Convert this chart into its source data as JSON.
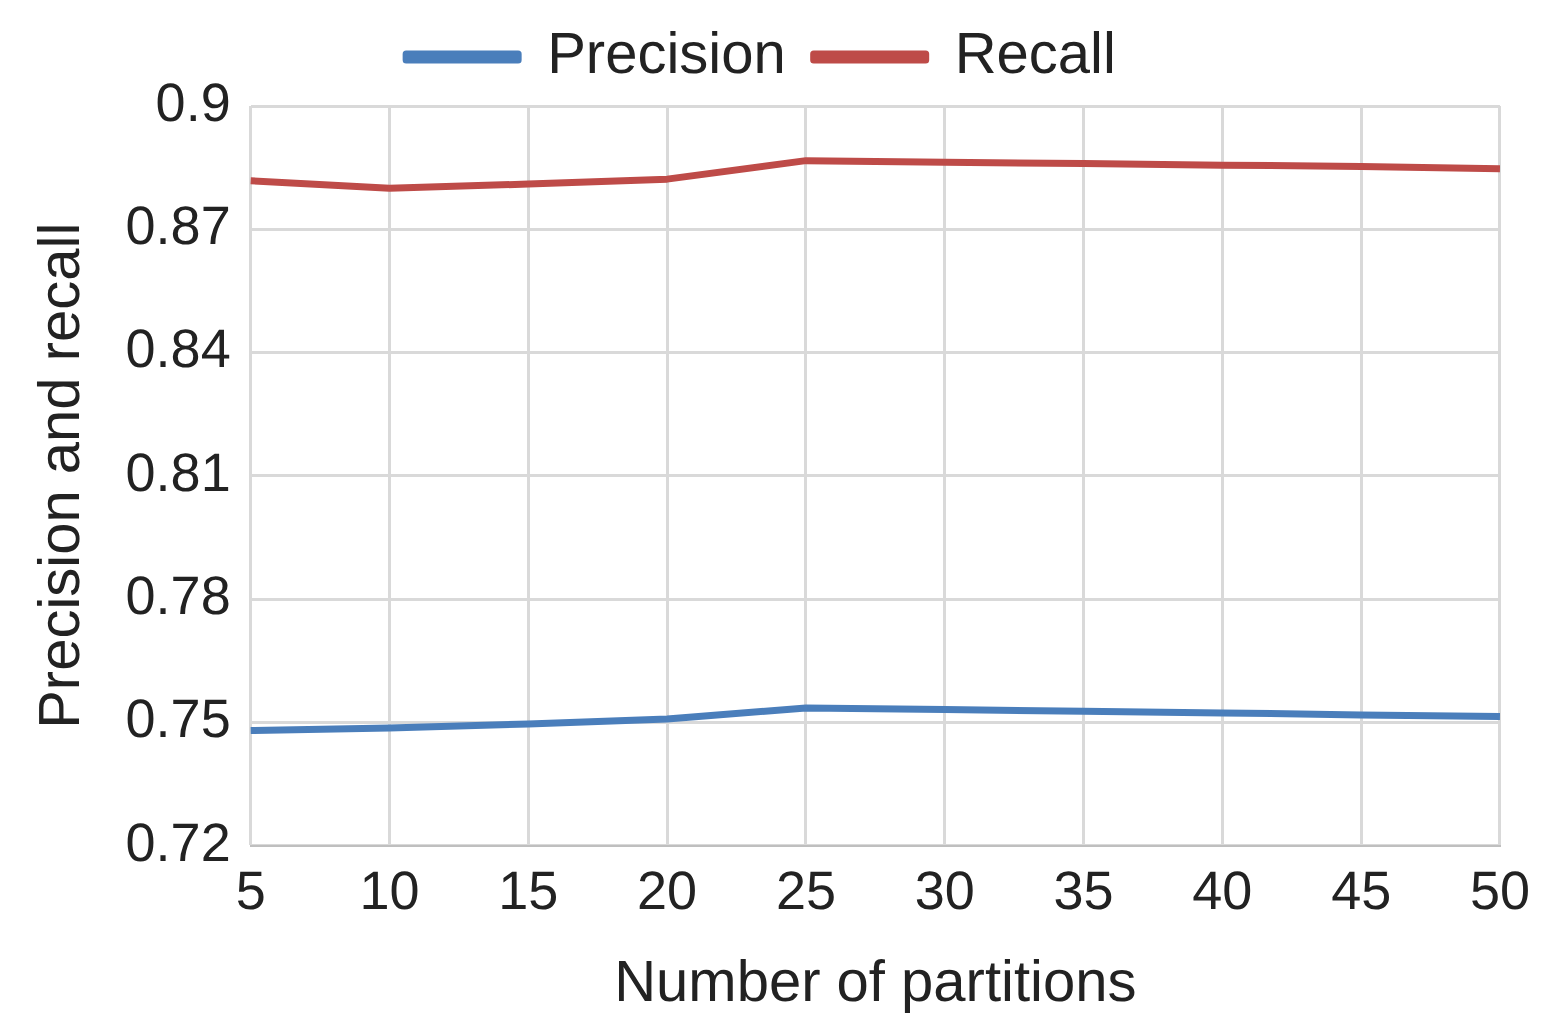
{
  "chart_data": {
    "type": "line",
    "xlabel": "Number of partitions",
    "ylabel": "Precision and recall",
    "categories": [
      "5",
      "10",
      "15",
      "20",
      "25",
      "30",
      "35",
      "40",
      "45",
      "50"
    ],
    "series": [
      {
        "name": "Precision",
        "color": "#4a7ebb",
        "values": [
          0.748,
          0.7486,
          0.7496,
          0.7508,
          0.7535,
          0.7531,
          0.7527,
          0.7523,
          0.7518,
          0.7514
        ]
      },
      {
        "name": "Recall",
        "color": "#be4b48",
        "values": [
          0.8818,
          0.88,
          0.881,
          0.8822,
          0.8867,
          0.8863,
          0.886,
          0.8856,
          0.8853,
          0.8847
        ]
      }
    ],
    "ylim": [
      0.72,
      0.9
    ],
    "yticks": [
      {
        "value": 0.72,
        "label": "0.72"
      },
      {
        "value": 0.75,
        "label": "0.75"
      },
      {
        "value": 0.78,
        "label": "0.78"
      },
      {
        "value": 0.81,
        "label": "0.81"
      },
      {
        "value": 0.84,
        "label": "0.84"
      },
      {
        "value": 0.87,
        "label": "0.87"
      },
      {
        "value": 0.9,
        "label": "0.9"
      }
    ],
    "grid": true,
    "legend": "top",
    "marker": "none",
    "line_style": "solid"
  }
}
